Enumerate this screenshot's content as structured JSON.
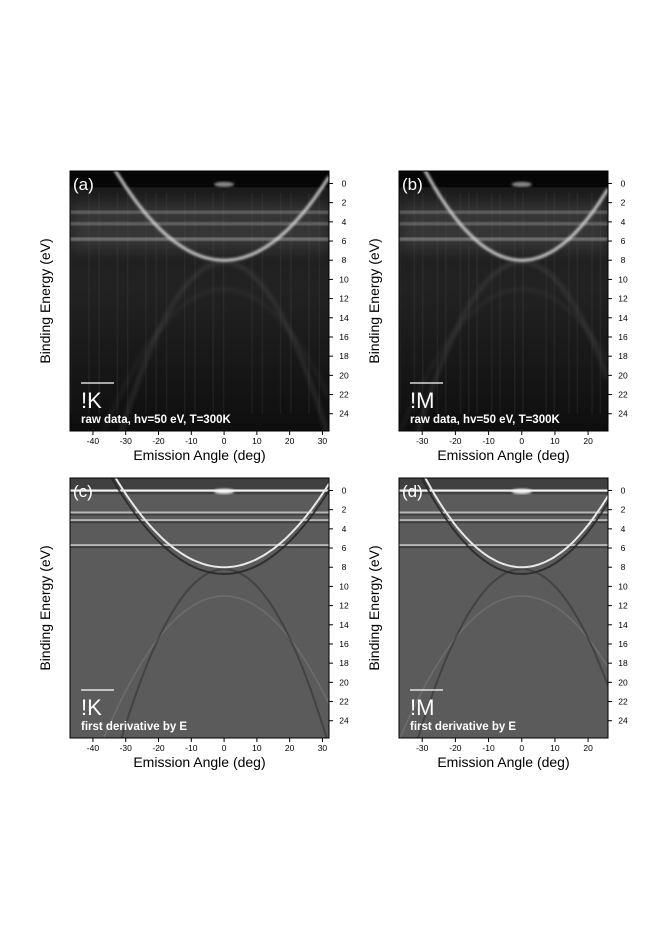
{
  "chart_data": [
    {
      "type": "heatmap",
      "panel_label": "(a)",
      "direction_label": "!K",
      "note": "raw data, hv=50 eV, T=300K",
      "xlabel": "Emission Angle (deg)",
      "ylabel": "Binding Energy (eV)",
      "xlim": [
        -47,
        32
      ],
      "ylim": [
        -1.3,
        25.8
      ],
      "x_ticks": [
        -40,
        -30,
        -20,
        -10,
        0,
        10,
        20,
        30
      ],
      "y_ticks": [
        0,
        2,
        4,
        6,
        8,
        10,
        12,
        14,
        16,
        18,
        20,
        22,
        24
      ],
      "colormap": "grayscale"
    },
    {
      "type": "heatmap",
      "panel_label": "(b)",
      "direction_label": "!M",
      "note": "raw data, hv=50 eV, T=300K",
      "xlabel": "Emission Angle (deg)",
      "ylabel": "Binding Energy (eV)",
      "xlim": [
        -37,
        26
      ],
      "ylim": [
        -1.3,
        25.8
      ],
      "x_ticks": [
        -30,
        -20,
        -10,
        0,
        10,
        20
      ],
      "y_ticks": [
        0,
        2,
        4,
        6,
        8,
        10,
        12,
        14,
        16,
        18,
        20,
        22,
        24
      ],
      "colormap": "grayscale"
    },
    {
      "type": "heatmap",
      "panel_label": "(c)",
      "direction_label": "!K",
      "note": "first derivative by E",
      "xlabel": "Emission Angle (deg)",
      "ylabel": "Binding Energy (eV)",
      "xlim": [
        -47,
        32
      ],
      "ylim": [
        -1.3,
        25.8
      ],
      "x_ticks": [
        -40,
        -30,
        -20,
        -10,
        0,
        10,
        20,
        30
      ],
      "y_ticks": [
        0,
        2,
        4,
        6,
        8,
        10,
        12,
        14,
        16,
        18,
        20,
        22,
        24
      ],
      "colormap": "grayscale"
    },
    {
      "type": "heatmap",
      "panel_label": "(d)",
      "direction_label": "!M",
      "note": "first derivative by E",
      "xlabel": "Emission Angle (deg)",
      "ylabel": "Binding Energy (eV)",
      "xlim": [
        -37,
        26
      ],
      "ylim": [
        -1.3,
        25.8
      ],
      "x_ticks": [
        -30,
        -20,
        -10,
        0,
        10,
        20
      ],
      "y_ticks": [
        0,
        2,
        4,
        6,
        8,
        10,
        12,
        14,
        16,
        18,
        20,
        22,
        24
      ],
      "colormap": "grayscale"
    }
  ]
}
